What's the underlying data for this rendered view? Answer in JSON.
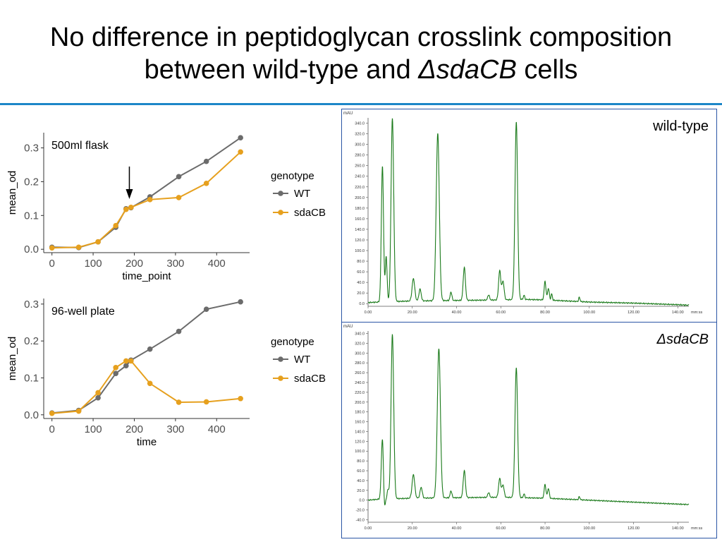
{
  "title": {
    "line1": "No difference in peptidoglycan crosslink composition",
    "line2_prefix": "between wild-type and ",
    "line2_italic": "ΔsdaCB",
    "line2_suffix": " cells"
  },
  "colors": {
    "title_rule": "#1c86c8",
    "wt": "#6b6b6b",
    "sdaCB": "#e6a01e",
    "chromatogram": "#1a7a1a",
    "hplc_border": "#2b55a5",
    "arrow": "#000000"
  },
  "chart_data": [
    {
      "type": "line",
      "panel_label": "500ml flask",
      "xlabel": "time_point",
      "ylabel": "mean_od",
      "xlim": [
        -20,
        480
      ],
      "ylim": [
        -0.01,
        0.345
      ],
      "xticks": [
        0,
        100,
        200,
        300,
        400
      ],
      "yticks": [
        0.0,
        0.1,
        0.2,
        0.3
      ],
      "ytick_labels": [
        "0.0",
        "0.1",
        "0.2",
        "0.3"
      ],
      "legend_title": "genotype",
      "legend_position": "right",
      "annotation": "down arrow at t≈190",
      "arrow_x": 188,
      "series": [
        {
          "name": "WT",
          "color": "#6b6b6b",
          "x": [
            0,
            65,
            112,
            155,
            180,
            192,
            238,
            308,
            375,
            458
          ],
          "y": [
            0.006,
            0.005,
            0.022,
            0.065,
            0.12,
            0.123,
            0.155,
            0.215,
            0.26,
            0.33
          ]
        },
        {
          "name": "sdaCB",
          "color": "#e6a01e",
          "x": [
            0,
            65,
            112,
            155,
            180,
            192,
            238,
            308,
            375,
            458
          ],
          "y": [
            0.004,
            0.006,
            0.022,
            0.07,
            0.118,
            0.124,
            0.147,
            0.153,
            0.195,
            0.288
          ]
        }
      ]
    },
    {
      "type": "line",
      "panel_label": "96-well plate",
      "xlabel": "time",
      "ylabel": "mean_od",
      "xlim": [
        -20,
        480
      ],
      "ylim": [
        -0.01,
        0.315
      ],
      "xticks": [
        0,
        100,
        200,
        300,
        400
      ],
      "yticks": [
        0.0,
        0.1,
        0.2,
        0.3
      ],
      "ytick_labels": [
        "0.0",
        "0.1",
        "0.2",
        "0.3"
      ],
      "legend_title": "genotype",
      "legend_position": "right",
      "series": [
        {
          "name": "WT",
          "color": "#6b6b6b",
          "x": [
            0,
            65,
            112,
            155,
            180,
            192,
            238,
            308,
            375,
            458
          ],
          "y": [
            0.005,
            0.012,
            0.046,
            0.112,
            0.133,
            0.148,
            0.178,
            0.226,
            0.286,
            0.306
          ]
        },
        {
          "name": "sdaCB",
          "color": "#e6a01e",
          "x": [
            0,
            65,
            112,
            155,
            180,
            192,
            238,
            308,
            375,
            458
          ],
          "y": [
            0.004,
            0.01,
            0.06,
            0.128,
            0.146,
            0.146,
            0.085,
            0.034,
            0.035,
            0.044
          ]
        }
      ]
    },
    {
      "type": "line",
      "panel_label": "wild-type",
      "italic_label": false,
      "y_unit": "mAU",
      "x_unit": "min",
      "xlim": [
        0,
        145
      ],
      "ylim": [
        -5,
        350
      ],
      "yticks": [
        0,
        20,
        40,
        60,
        80,
        100,
        120,
        140,
        160,
        180,
        200,
        220,
        240,
        260,
        280,
        300,
        320,
        340
      ],
      "ytick_labels": [
        "0.0",
        "20.0",
        "40.0",
        "60.0",
        "80.0",
        "100.0",
        "120.0",
        "140.0",
        "160.0",
        "180.0",
        "200.0",
        "220.0",
        "240.0",
        "260.0",
        "280.0",
        "300.0",
        "320.0",
        "340.0"
      ],
      "xticks": [
        0,
        20,
        40,
        60,
        80,
        100,
        120,
        140
      ],
      "xtick_labels": [
        "0.00",
        "20.00",
        "40.00",
        "60.00",
        "80.00",
        "100.00",
        "120.00",
        "140.00"
      ],
      "x_suffix": "mm:ss",
      "baseline": [
        [
          0,
          2
        ],
        [
          5,
          3
        ],
        [
          20,
          5
        ],
        [
          40,
          6
        ],
        [
          60,
          7
        ],
        [
          70,
          8
        ],
        [
          80,
          7
        ],
        [
          100,
          3
        ],
        [
          120,
          1
        ],
        [
          140,
          -2
        ],
        [
          145,
          -3
        ]
      ],
      "peaks": [
        [
          6.5,
          255,
          0.5
        ],
        [
          8.2,
          85,
          0.4
        ],
        [
          11.0,
          345,
          0.6
        ],
        [
          20.5,
          42,
          0.6
        ],
        [
          23.5,
          22,
          0.5
        ],
        [
          31.5,
          315,
          0.7
        ],
        [
          37.5,
          16,
          0.4
        ],
        [
          43.5,
          62,
          0.5
        ],
        [
          54.5,
          10,
          0.4
        ],
        [
          59.5,
          55,
          0.5
        ],
        [
          61.0,
          35,
          0.5
        ],
        [
          67.0,
          335,
          0.6
        ],
        [
          70.5,
          8,
          0.3
        ],
        [
          80.0,
          35,
          0.4
        ],
        [
          81.5,
          22,
          0.4
        ],
        [
          83.0,
          12,
          0.3
        ],
        [
          95.5,
          8,
          0.3
        ]
      ]
    },
    {
      "type": "line",
      "panel_label": "ΔsdaCB",
      "italic_label": true,
      "y_unit": "mAU",
      "x_unit": "min",
      "xlim": [
        0,
        145
      ],
      "ylim": [
        -45,
        345
      ],
      "yticks": [
        -40,
        -20,
        0,
        20,
        40,
        60,
        80,
        100,
        120,
        140,
        160,
        180,
        200,
        220,
        240,
        260,
        280,
        300,
        320,
        340
      ],
      "ytick_labels": [
        "-40.0",
        "-20.0",
        "0.0",
        "20.0",
        "40.0",
        "60.0",
        "80.0",
        "100.0",
        "120.0",
        "140.0",
        "160.0",
        "180.0",
        "200.0",
        "220.0",
        "240.0",
        "260.0",
        "280.0",
        "300.0",
        "320.0",
        "340.0"
      ],
      "xticks": [
        0,
        20,
        40,
        60,
        80,
        100,
        120,
        140
      ],
      "xtick_labels": [
        "0.00",
        "20.00",
        "40.00",
        "60.00",
        "80.00",
        "100.00",
        "120.00",
        "140.00"
      ],
      "x_suffix": "mm:ss",
      "baseline": [
        [
          0,
          0
        ],
        [
          5,
          2
        ],
        [
          20,
          4
        ],
        [
          40,
          5
        ],
        [
          60,
          6
        ],
        [
          80,
          4
        ],
        [
          100,
          0
        ],
        [
          120,
          -4
        ],
        [
          140,
          -8
        ],
        [
          145,
          -9
        ]
      ],
      "dips": [
        [
          7.3,
          -30,
          0.4
        ]
      ],
      "peaks": [
        [
          6.5,
          125,
          0.5
        ],
        [
          9.0,
          18,
          0.4
        ],
        [
          11.0,
          335,
          0.6
        ],
        [
          20.5,
          48,
          0.6
        ],
        [
          24.0,
          22,
          0.5
        ],
        [
          32.0,
          305,
          0.7
        ],
        [
          37.5,
          14,
          0.4
        ],
        [
          43.5,
          55,
          0.5
        ],
        [
          54.5,
          10,
          0.4
        ],
        [
          59.5,
          38,
          0.5
        ],
        [
          61.0,
          25,
          0.5
        ],
        [
          67.0,
          265,
          0.6
        ],
        [
          70.5,
          8,
          0.3
        ],
        [
          80.0,
          28,
          0.4
        ],
        [
          81.5,
          20,
          0.4
        ],
        [
          95.5,
          6,
          0.3
        ]
      ]
    }
  ]
}
